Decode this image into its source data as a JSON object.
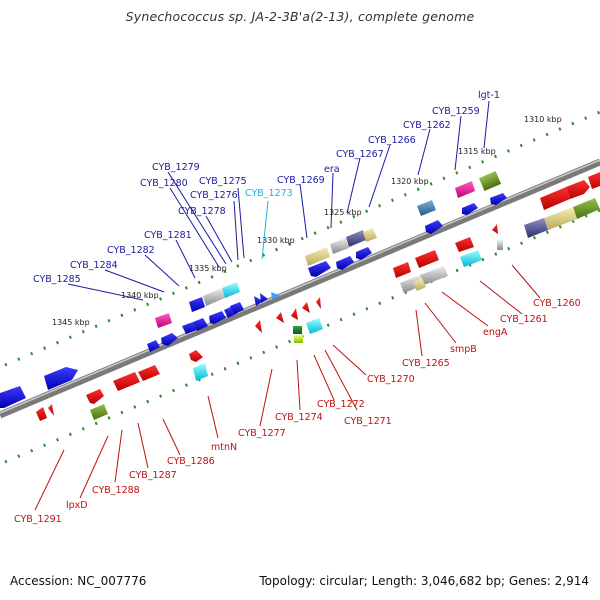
{
  "title": "Synechococcus sp. JA-2-3B'a(2-13), complete genome",
  "footer": {
    "accession": "Accession: NC_007776",
    "summary": "Topology: circular; Length: 3,046,682 bp; Genes: 2,914"
  },
  "colors": {
    "forward_label": "#1a1aa0",
    "reverse_label": "#c01010",
    "highlight_label": "#20b0e0",
    "backbone": "#808080",
    "tick": "#2e8b2e"
  },
  "kbp_labels": [
    "1310 kbp",
    "1315 kbp",
    "1320 kbp",
    "1325 kbp",
    "1330 kbp",
    "1335 kbp",
    "1340 kbp",
    "1345 kbp"
  ],
  "forward_genes": [
    "lgt-1",
    "CYB_1259",
    "CYB_1262",
    "CYB_1266",
    "CYB_1267",
    "era",
    "CYB_1269",
    "CYB_1273",
    "CYB_1275",
    "CYB_1276",
    "CYB_1278",
    "CYB_1279",
    "CYB_1280",
    "CYB_1281",
    "CYB_1282",
    "CYB_1284",
    "CYB_1285"
  ],
  "reverse_genes": [
    "CYB_1260",
    "CYB_1261",
    "engA",
    "smpB",
    "CYB_1265",
    "CYB_1270",
    "CYB_1271",
    "CYB_1272",
    "CYB_1274",
    "CYB_1277",
    "mtnN",
    "CYB_1286",
    "CYB_1287",
    "CYB_1288",
    "lpxD",
    "CYB_1291"
  ]
}
